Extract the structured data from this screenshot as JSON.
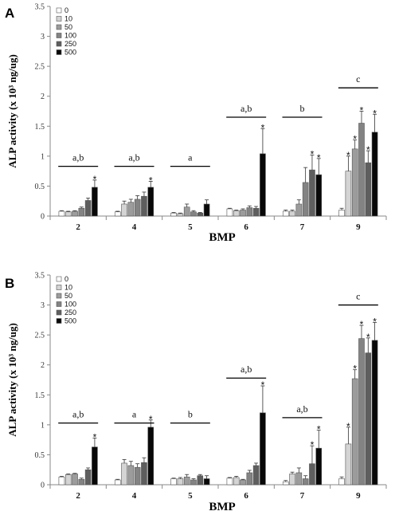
{
  "chart_data": [
    {
      "type": "bar",
      "panel_label": "A",
      "categories": [
        "2",
        "4",
        "5",
        "6",
        "7",
        "9"
      ],
      "xlabel": "BMP",
      "ylabel": "ALP activity (x 10³ ng/ug)",
      "ylim": [
        0,
        3.5
      ],
      "yticks": [
        "0",
        "0.5",
        "1",
        "1.5",
        "2",
        "2.5",
        "3",
        "3.5"
      ],
      "legend_position": "top-left",
      "series": [
        {
          "name": "0",
          "color": "#ffffff",
          "values": [
            0.08,
            0.07,
            0.05,
            0.12,
            0.08,
            0.1
          ],
          "errors": [
            0.01,
            0.01,
            0.01,
            0.01,
            0.02,
            0.03
          ]
        },
        {
          "name": "10",
          "color": "#d4d4d4",
          "values": [
            0.07,
            0.2,
            0.04,
            0.09,
            0.08,
            0.75
          ],
          "errors": [
            0.01,
            0.05,
            0.01,
            0.01,
            0.02,
            0.25
          ]
        },
        {
          "name": "50",
          "color": "#9c9c9c",
          "values": [
            0.08,
            0.23,
            0.15,
            0.1,
            0.2,
            1.12
          ],
          "errors": [
            0.01,
            0.05,
            0.05,
            0.02,
            0.07,
            0.15
          ]
        },
        {
          "name": "100",
          "color": "#838383",
          "values": [
            0.13,
            0.28,
            0.07,
            0.14,
            0.56,
            1.55
          ],
          "errors": [
            0.02,
            0.06,
            0.02,
            0.03,
            0.25,
            0.2
          ]
        },
        {
          "name": "250",
          "color": "#5e5e5e",
          "values": [
            0.26,
            0.33,
            0.05,
            0.13,
            0.77,
            0.89
          ],
          "errors": [
            0.04,
            0.07,
            0.01,
            0.03,
            0.25,
            0.2
          ]
        },
        {
          "name": "500",
          "color": "#080808",
          "values": [
            0.48,
            0.48,
            0.2,
            1.04,
            0.69,
            1.4
          ],
          "errors": [
            0.12,
            0.1,
            0.07,
            0.42,
            0.27,
            0.3
          ]
        }
      ],
      "stars": [
        {
          "category": 0,
          "series": 5
        },
        {
          "category": 1,
          "series": 5
        },
        {
          "category": 3,
          "series": 5
        },
        {
          "category": 4,
          "series": 4
        },
        {
          "category": 4,
          "series": 5
        },
        {
          "category": 5,
          "series": 1
        },
        {
          "category": 5,
          "series": 2
        },
        {
          "category": 5,
          "series": 3
        },
        {
          "category": 5,
          "series": 4
        },
        {
          "category": 5,
          "series": 5
        }
      ],
      "groups": [
        {
          "category": 0,
          "label": "a,b",
          "y": 0.83
        },
        {
          "category": 1,
          "label": "a,b",
          "y": 0.83
        },
        {
          "category": 2,
          "label": "a",
          "y": 0.83
        },
        {
          "category": 3,
          "label": "a,b",
          "y": 1.65
        },
        {
          "category": 4,
          "label": "b",
          "y": 1.65
        },
        {
          "category": 5,
          "label": "c",
          "y": 2.14
        }
      ]
    },
    {
      "type": "bar",
      "panel_label": "B",
      "categories": [
        "2",
        "4",
        "5",
        "6",
        "7",
        "9"
      ],
      "xlabel": "BMP",
      "ylabel": "ALP activity (x 10³ ng/ug)",
      "ylim": [
        0,
        3.5
      ],
      "yticks": [
        "0",
        "0.5",
        "1",
        "1.5",
        "2",
        "2.5",
        "3",
        "3.5"
      ],
      "legend_position": "top-left",
      "series": [
        {
          "name": "0",
          "color": "#ffffff",
          "values": [
            0.13,
            0.08,
            0.1,
            0.11,
            0.05,
            0.1
          ],
          "errors": [
            0.01,
            0.01,
            0.01,
            0.01,
            0.02,
            0.03
          ]
        },
        {
          "name": "10",
          "color": "#d4d4d4",
          "values": [
            0.17,
            0.36,
            0.1,
            0.12,
            0.18,
            0.68
          ],
          "errors": [
            0.01,
            0.06,
            0.02,
            0.02,
            0.03,
            0.28
          ]
        },
        {
          "name": "50",
          "color": "#9c9c9c",
          "values": [
            0.18,
            0.32,
            0.13,
            0.08,
            0.2,
            1.77
          ],
          "errors": [
            0.01,
            0.07,
            0.04,
            0.01,
            0.08,
            0.15
          ]
        },
        {
          "name": "100",
          "color": "#838383",
          "values": [
            0.09,
            0.29,
            0.08,
            0.2,
            0.1,
            2.44
          ],
          "errors": [
            0.02,
            0.06,
            0.02,
            0.04,
            0.05,
            0.22
          ]
        },
        {
          "name": "250",
          "color": "#5e5e5e",
          "values": [
            0.25,
            0.37,
            0.15,
            0.32,
            0.35,
            2.2
          ],
          "errors": [
            0.03,
            0.08,
            0.02,
            0.04,
            0.3,
            0.25
          ]
        },
        {
          "name": "500",
          "color": "#080808",
          "values": [
            0.63,
            0.96,
            0.1,
            1.2,
            0.61,
            2.41
          ],
          "errors": [
            0.15,
            0.12,
            0.05,
            0.45,
            0.3,
            0.3
          ]
        }
      ],
      "stars": [
        {
          "category": 0,
          "series": 5
        },
        {
          "category": 1,
          "series": 5
        },
        {
          "category": 3,
          "series": 5
        },
        {
          "category": 4,
          "series": 4
        },
        {
          "category": 4,
          "series": 5
        },
        {
          "category": 5,
          "series": 1
        },
        {
          "category": 5,
          "series": 2
        },
        {
          "category": 5,
          "series": 3
        },
        {
          "category": 5,
          "series": 4
        },
        {
          "category": 5,
          "series": 5
        }
      ],
      "groups": [
        {
          "category": 0,
          "label": "a,b",
          "y": 1.03
        },
        {
          "category": 1,
          "label": "a",
          "y": 1.03
        },
        {
          "category": 2,
          "label": "b",
          "y": 1.03
        },
        {
          "category": 3,
          "label": "a,b",
          "y": 1.78
        },
        {
          "category": 4,
          "label": "a,b",
          "y": 1.12
        },
        {
          "category": 5,
          "label": "c",
          "y": 3.0
        }
      ]
    }
  ]
}
